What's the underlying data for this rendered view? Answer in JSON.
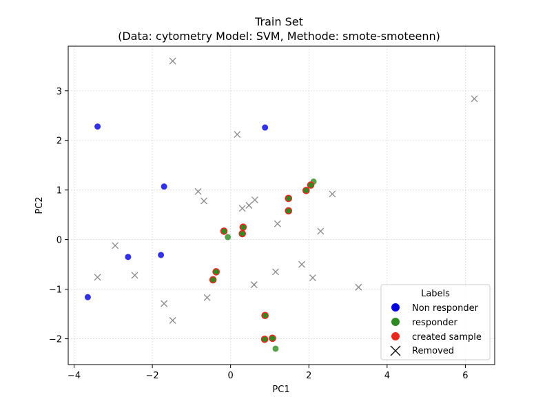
{
  "chart_data": {
    "type": "scatter",
    "title": "Train Set",
    "subtitle": "(Data: cytometry Model: SVM, Methode: smote-smoteenn)",
    "xlabel": "PC1",
    "ylabel": "PC2",
    "xlim": [
      -4.15,
      6.75
    ],
    "ylim": [
      -2.52,
      3.9
    ],
    "xticks": [
      -4,
      -2,
      0,
      2,
      4,
      6
    ],
    "yticks": [
      -2,
      -1,
      0,
      1,
      2,
      3
    ],
    "xtick_labels": [
      "−4",
      "−2",
      "0",
      "2",
      "4",
      "6"
    ],
    "ytick_labels": [
      "−2",
      "−1",
      "0",
      "1",
      "2",
      "3"
    ],
    "grid": true,
    "legend_placement": "lower-right",
    "legend_title": "Labels",
    "colors": {
      "non_responder": "#0000dd",
      "responder": "#2e8b22",
      "created_sample": "#e8281e",
      "removed": "#888888"
    },
    "series": [
      {
        "name": "Non responder",
        "marker": "circle",
        "color": "#0000dd",
        "x": [
          -3.4,
          0.88,
          -1.7,
          -2.62,
          -1.78,
          -3.65
        ],
        "y": [
          2.28,
          2.26,
          1.07,
          -0.35,
          -0.31,
          -1.16
        ]
      },
      {
        "name": "responder",
        "marker": "circle",
        "color": "#2e8b22",
        "x": [
          2.12,
          -0.07,
          1.15
        ],
        "y": [
          1.17,
          0.05,
          -2.2
        ]
      },
      {
        "name": "created sample",
        "marker": "circle-red-edge-green-fill",
        "color": "#e8281e",
        "x": [
          2.05,
          1.93,
          1.48,
          1.48,
          -0.17,
          0.32,
          0.3,
          -0.37,
          -0.45,
          0.88,
          0.87,
          1.07
        ],
        "y": [
          1.1,
          0.99,
          0.83,
          0.58,
          0.17,
          0.25,
          0.12,
          -0.65,
          -0.81,
          -1.53,
          -2.01,
          -1.99
        ]
      },
      {
        "name": "Removed",
        "marker": "x",
        "color": "#888888",
        "x": [
          -1.48,
          6.23,
          0.17,
          -0.83,
          -0.68,
          0.3,
          0.47,
          0.62,
          2.6,
          1.2,
          2.3,
          -2.95,
          -3.4,
          -2.45,
          1.82,
          1.15,
          0.6,
          2.1,
          3.27,
          -1.7,
          -0.6,
          -1.48
        ],
        "y": [
          3.6,
          2.84,
          2.12,
          0.97,
          0.78,
          0.63,
          0.69,
          0.8,
          0.92,
          0.32,
          0.17,
          -0.12,
          -0.76,
          -0.72,
          -0.5,
          -0.65,
          -0.91,
          -0.77,
          -0.96,
          -1.29,
          -1.17,
          -1.63
        ]
      }
    ]
  }
}
